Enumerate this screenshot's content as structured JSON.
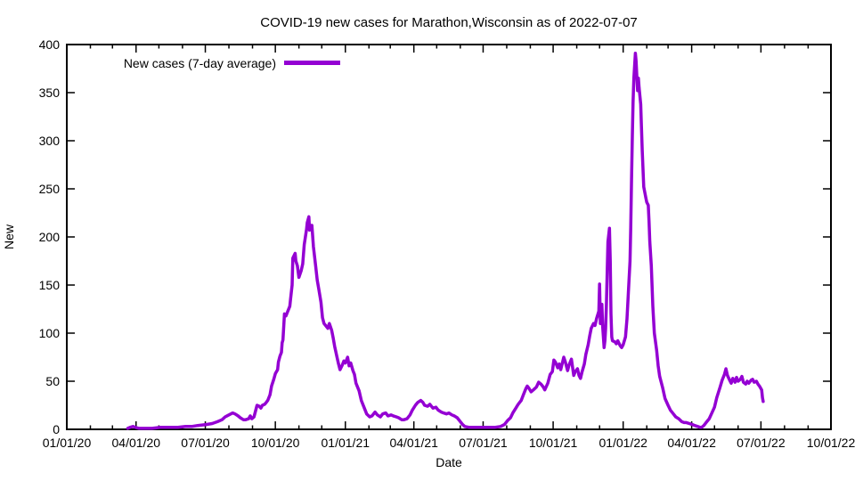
{
  "chart_data": {
    "type": "line",
    "title": "COVID-19 new cases for Marathon,Wisconsin as of 2022-07-07",
    "xlabel": "Date",
    "ylabel": "New",
    "legend_label": "New cases (7-day average)",
    "legend_position": "top-left",
    "grid": false,
    "line_color": "#9400d3",
    "frame_color": "#000000",
    "background_color": "#ffffff",
    "ylim": [
      0,
      400
    ],
    "y_tick_labels": [
      "0",
      "50",
      "100",
      "150",
      "200",
      "250",
      "300",
      "350",
      "400"
    ],
    "x_tick_labels": [
      "01/01/20",
      "04/01/20",
      "07/01/20",
      "10/01/20",
      "01/01/21",
      "04/01/21",
      "07/01/21",
      "10/01/21",
      "01/01/22",
      "04/01/22",
      "07/01/22",
      "10/01/22"
    ],
    "x_epoch": "2020-01-01",
    "x_unit": "days since 2020-01-01",
    "x_range_days": [
      0,
      1004
    ],
    "series_name": "New cases (7-day average)",
    "points": [
      [
        80,
        1
      ],
      [
        83,
        2
      ],
      [
        87,
        3
      ],
      [
        90,
        2
      ],
      [
        95,
        1
      ],
      [
        103,
        1
      ],
      [
        112,
        1
      ],
      [
        123,
        2
      ],
      [
        135,
        2
      ],
      [
        146,
        2
      ],
      [
        156,
        3
      ],
      [
        164,
        3
      ],
      [
        172,
        4
      ],
      [
        183,
        5
      ],
      [
        191,
        6
      ],
      [
        198,
        8
      ],
      [
        204,
        10
      ],
      [
        208,
        13
      ],
      [
        213,
        15
      ],
      [
        218,
        17
      ],
      [
        221,
        16
      ],
      [
        225,
        14
      ],
      [
        228,
        12
      ],
      [
        232,
        10
      ],
      [
        235,
        10
      ],
      [
        239,
        11
      ],
      [
        241,
        14
      ],
      [
        243,
        11
      ],
      [
        246,
        13
      ],
      [
        248,
        19
      ],
      [
        250,
        25
      ],
      [
        253,
        24
      ],
      [
        255,
        22
      ],
      [
        257,
        25
      ],
      [
        260,
        26
      ],
      [
        262,
        28
      ],
      [
        264,
        30
      ],
      [
        267,
        36
      ],
      [
        269,
        45
      ],
      [
        272,
        52
      ],
      [
        274,
        58
      ],
      [
        277,
        62
      ],
      [
        278,
        70
      ],
      [
        280,
        76
      ],
      [
        282,
        80
      ],
      [
        283,
        90
      ],
      [
        284,
        93
      ],
      [
        286,
        120
      ],
      [
        288,
        118
      ],
      [
        290,
        122
      ],
      [
        293,
        128
      ],
      [
        294,
        135
      ],
      [
        296,
        150
      ],
      [
        297,
        178
      ],
      [
        300,
        183
      ],
      [
        301,
        175
      ],
      [
        303,
        170
      ],
      [
        305,
        158
      ],
      [
        308,
        165
      ],
      [
        310,
        172
      ],
      [
        312,
        192
      ],
      [
        315,
        208
      ],
      [
        316,
        215
      ],
      [
        318,
        221
      ],
      [
        319,
        207
      ],
      [
        322,
        212
      ],
      [
        324,
        190
      ],
      [
        327,
        170
      ],
      [
        329,
        155
      ],
      [
        331,
        146
      ],
      [
        334,
        132
      ],
      [
        336,
        116
      ],
      [
        338,
        110
      ],
      [
        341,
        107
      ],
      [
        343,
        105
      ],
      [
        345,
        110
      ],
      [
        348,
        103
      ],
      [
        350,
        95
      ],
      [
        352,
        86
      ],
      [
        355,
        75
      ],
      [
        357,
        68
      ],
      [
        359,
        62
      ],
      [
        362,
        67
      ],
      [
        364,
        71
      ],
      [
        366,
        69
      ],
      [
        369,
        75
      ],
      [
        371,
        66
      ],
      [
        373,
        69
      ],
      [
        376,
        61
      ],
      [
        378,
        57
      ],
      [
        380,
        48
      ],
      [
        384,
        40
      ],
      [
        387,
        30
      ],
      [
        391,
        22
      ],
      [
        394,
        16
      ],
      [
        398,
        13
      ],
      [
        401,
        14
      ],
      [
        405,
        18
      ],
      [
        408,
        15
      ],
      [
        412,
        13
      ],
      [
        415,
        16
      ],
      [
        419,
        17
      ],
      [
        422,
        14
      ],
      [
        426,
        15
      ],
      [
        429,
        14
      ],
      [
        433,
        13
      ],
      [
        436,
        12
      ],
      [
        440,
        10
      ],
      [
        443,
        10
      ],
      [
        447,
        11
      ],
      [
        451,
        15
      ],
      [
        454,
        20
      ],
      [
        458,
        25
      ],
      [
        461,
        28
      ],
      [
        465,
        30
      ],
      [
        468,
        28
      ],
      [
        470,
        25
      ],
      [
        474,
        24
      ],
      [
        477,
        26
      ],
      [
        481,
        22
      ],
      [
        485,
        23
      ],
      [
        488,
        20
      ],
      [
        492,
        18
      ],
      [
        495,
        17
      ],
      [
        499,
        16
      ],
      [
        502,
        17
      ],
      [
        506,
        15
      ],
      [
        509,
        14
      ],
      [
        513,
        12
      ],
      [
        516,
        9
      ],
      [
        520,
        5
      ],
      [
        523,
        3
      ],
      [
        529,
        2
      ],
      [
        538,
        2
      ],
      [
        550,
        2
      ],
      [
        562,
        2
      ],
      [
        570,
        3
      ],
      [
        575,
        5
      ],
      [
        579,
        9
      ],
      [
        583,
        12
      ],
      [
        586,
        17
      ],
      [
        590,
        22
      ],
      [
        593,
        26
      ],
      [
        597,
        30
      ],
      [
        600,
        36
      ],
      [
        603,
        42
      ],
      [
        605,
        45
      ],
      [
        607,
        43
      ],
      [
        610,
        39
      ],
      [
        613,
        41
      ],
      [
        617,
        44
      ],
      [
        620,
        49
      ],
      [
        623,
        47
      ],
      [
        626,
        44
      ],
      [
        628,
        41
      ],
      [
        632,
        48
      ],
      [
        635,
        57
      ],
      [
        638,
        60
      ],
      [
        640,
        72
      ],
      [
        642,
        70
      ],
      [
        645,
        64
      ],
      [
        647,
        68
      ],
      [
        649,
        62
      ],
      [
        653,
        75
      ],
      [
        655,
        70
      ],
      [
        658,
        61
      ],
      [
        660,
        67
      ],
      [
        663,
        73
      ],
      [
        666,
        56
      ],
      [
        668,
        60
      ],
      [
        671,
        63
      ],
      [
        673,
        56
      ],
      [
        675,
        53
      ],
      [
        677,
        60
      ],
      [
        680,
        68
      ],
      [
        682,
        78
      ],
      [
        685,
        88
      ],
      [
        687,
        97
      ],
      [
        689,
        105
      ],
      [
        692,
        110
      ],
      [
        694,
        108
      ],
      [
        696,
        115
      ],
      [
        699,
        123
      ],
      [
        700,
        151
      ],
      [
        701,
        110
      ],
      [
        702,
        125
      ],
      [
        703,
        130
      ],
      [
        704,
        108
      ],
      [
        706,
        85
      ],
      [
        707,
        92
      ],
      [
        708,
        105
      ],
      [
        709,
        130
      ],
      [
        710,
        165
      ],
      [
        711,
        195
      ],
      [
        713,
        209
      ],
      [
        714,
        175
      ],
      [
        715,
        120
      ],
      [
        716,
        96
      ],
      [
        717,
        92
      ],
      [
        720,
        91
      ],
      [
        722,
        89
      ],
      [
        724,
        92
      ],
      [
        727,
        87
      ],
      [
        729,
        85
      ],
      [
        731,
        88
      ],
      [
        734,
        96
      ],
      [
        736,
        115
      ],
      [
        738,
        145
      ],
      [
        740,
        175
      ],
      [
        741,
        210
      ],
      [
        742,
        260
      ],
      [
        743,
        305
      ],
      [
        744,
        340
      ],
      [
        745,
        365
      ],
      [
        747,
        391
      ],
      [
        748,
        383
      ],
      [
        749,
        366
      ],
      [
        750,
        352
      ],
      [
        751,
        365
      ],
      [
        752,
        355
      ],
      [
        754,
        338
      ],
      [
        755,
        315
      ],
      [
        756,
        290
      ],
      [
        758,
        252
      ],
      [
        761,
        240
      ],
      [
        762,
        236
      ],
      [
        764,
        233
      ],
      [
        765,
        215
      ],
      [
        766,
        195
      ],
      [
        768,
        170
      ],
      [
        770,
        128
      ],
      [
        772,
        100
      ],
      [
        775,
        82
      ],
      [
        777,
        66
      ],
      [
        779,
        55
      ],
      [
        783,
        43
      ],
      [
        786,
        32
      ],
      [
        790,
        25
      ],
      [
        793,
        20
      ],
      [
        797,
        16
      ],
      [
        800,
        13
      ],
      [
        804,
        11
      ],
      [
        808,
        8
      ],
      [
        811,
        7
      ],
      [
        814,
        7
      ],
      [
        818,
        6
      ],
      [
        822,
        5
      ],
      [
        825,
        4
      ],
      [
        829,
        3
      ],
      [
        832,
        2
      ],
      [
        834,
        2
      ],
      [
        837,
        4
      ],
      [
        840,
        7
      ],
      [
        844,
        11
      ],
      [
        847,
        16
      ],
      [
        851,
        23
      ],
      [
        854,
        33
      ],
      [
        858,
        43
      ],
      [
        861,
        51
      ],
      [
        864,
        57
      ],
      [
        866,
        63
      ],
      [
        868,
        56
      ],
      [
        871,
        51
      ],
      [
        873,
        48
      ],
      [
        875,
        53
      ],
      [
        878,
        49
      ],
      [
        880,
        54
      ],
      [
        882,
        50
      ],
      [
        885,
        52
      ],
      [
        887,
        55
      ],
      [
        889,
        49
      ],
      [
        892,
        47
      ],
      [
        894,
        50
      ],
      [
        896,
        48
      ],
      [
        899,
        51
      ],
      [
        901,
        52
      ],
      [
        903,
        49
      ],
      [
        906,
        50
      ],
      [
        908,
        47
      ],
      [
        910,
        45
      ],
      [
        913,
        41
      ],
      [
        914,
        33
      ],
      [
        915,
        29
      ]
    ]
  }
}
